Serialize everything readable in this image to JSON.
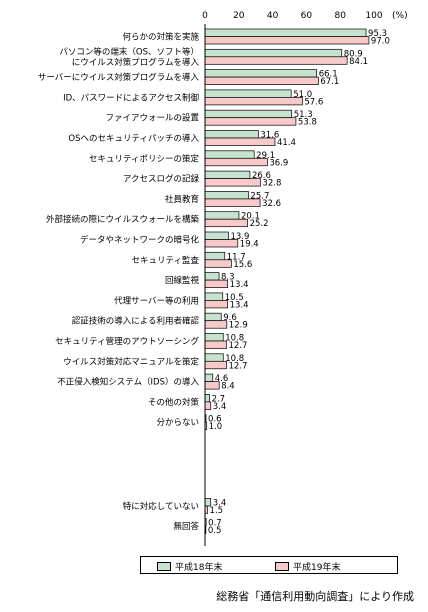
{
  "chart_data": {
    "type": "bar",
    "orientation": "horizontal",
    "unit": "(%)",
    "xlim": [
      0,
      100
    ],
    "ticks": [
      0,
      20,
      40,
      60,
      80,
      100
    ],
    "categories": [
      "何らかの対策を実施",
      "パソコン等の端末（OS、ソフト等）\nにウイルス対策プログラムを導入",
      "サーバーにウイルス対策プログラムを導入",
      "ID、パスワードによるアクセス制御",
      "ファイアウォールの設置",
      "OSへのセキュリティパッチの導入",
      "セキュリティポリシーの策定",
      "アクセスログの記録",
      "社員教育",
      "外部接続の際にウイルスウォールを構築",
      "データやネットワークの暗号化",
      "セキュリティ監査",
      "回線監視",
      "代理サーバー等の利用",
      "認証技術の導入による利用者確認",
      "セキュリティ管理のアウトソーシング",
      "ウイルス対策対応マニュアルを策定",
      "不正侵入検知システム（IDS）の導入",
      "その他の対策",
      "分からない",
      "特に対応していない",
      "無回答"
    ],
    "series": [
      {
        "name": "平成18年末",
        "color": "#c5e3cf",
        "values": [
          95.3,
          80.9,
          66.1,
          51.0,
          51.3,
          31.6,
          29.1,
          26.6,
          25.7,
          20.1,
          13.9,
          11.7,
          8.3,
          10.5,
          9.6,
          10.8,
          10.8,
          4.6,
          2.7,
          0.6,
          3.4,
          0.7
        ]
      },
      {
        "name": "平成19年末",
        "color": "#f7c9c9",
        "values": [
          97.0,
          84.1,
          67.1,
          57.6,
          53.8,
          41.4,
          36.9,
          32.8,
          32.6,
          25.2,
          19.4,
          15.6,
          13.4,
          13.4,
          12.9,
          12.7,
          12.7,
          8.4,
          3.4,
          1.0,
          1.5,
          0.5
        ]
      }
    ]
  },
  "source": "総務省「通信利用動向調査」により作成"
}
